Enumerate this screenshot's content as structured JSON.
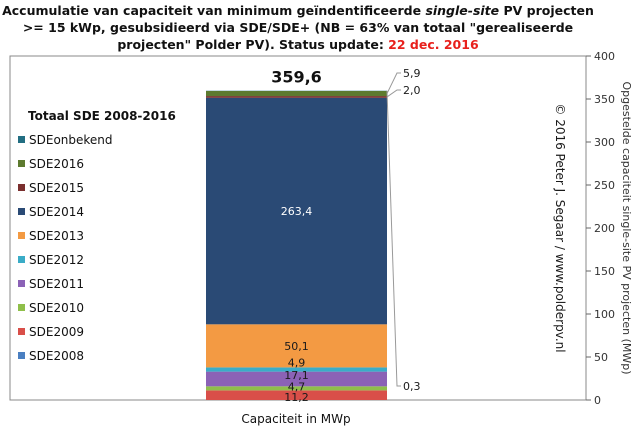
{
  "title": {
    "part1": "Accumulatie van capaciteit van minimum geïndentificeerde ",
    "italic": "single-site",
    "part2": " PV projecten >= 15 kWp, gesubsidieerd via SDE/SDE+ (NB = 63% van totaal \"gerealiseerde projecten\" Polder PV). Status update: ",
    "date": "22 dec. 2016"
  },
  "watermark": "© 2016 Peter J. Segaar / www.polderpv.nl",
  "colors": {
    "date_red": "#e8201c",
    "background": "#ffffff",
    "plot_border": "#888888"
  },
  "chart_data": {
    "type": "bar",
    "stacked": true,
    "categories": [
      ""
    ],
    "xlabel": "Capaciteit in MWp",
    "ylabel": "Opgestelde capaciteit single-site PV projecten (MWp)",
    "ylim": [
      0,
      400
    ],
    "yticks": [
      0,
      50,
      100,
      150,
      200,
      250,
      300,
      350,
      400
    ],
    "y_axis_side": "right",
    "grid": false,
    "legend_title": "Totaal SDE 2008-2016",
    "legend_position": "left",
    "total": 359.6,
    "total_label": "359,6",
    "series": [
      {
        "name": "SDE2008",
        "value": 0.0,
        "label": "",
        "color": "#4a7fc1"
      },
      {
        "name": "SDE2009",
        "value": 11.2,
        "label": "11,2",
        "color": "#d94f49"
      },
      {
        "name": "SDE2010",
        "value": 4.7,
        "label": "4,7",
        "color": "#8fbf4a"
      },
      {
        "name": "SDE2011",
        "value": 17.1,
        "label": "17,1",
        "color": "#8b62b6"
      },
      {
        "name": "SDE2012",
        "value": 4.9,
        "label": "4,9",
        "color": "#3aacc7"
      },
      {
        "name": "SDE2013",
        "value": 50.1,
        "label": "50,1",
        "color": "#f39a43"
      },
      {
        "name": "SDE2014",
        "value": 263.4,
        "label": "263,4",
        "color": "#2a4a75"
      },
      {
        "name": "SDE2015",
        "value": 2.0,
        "label": "2,0",
        "color": "#7a2f2e"
      },
      {
        "name": "SDE2016",
        "value": 5.9,
        "label": "5,9",
        "color": "#5d7a2f"
      },
      {
        "name": "SDEonbekend",
        "value": 0.3,
        "label": "0,3",
        "color": "#226e82"
      }
    ],
    "legend_order": [
      "SDEonbekend",
      "SDE2016",
      "SDE2015",
      "SDE2014",
      "SDE2013",
      "SDE2012",
      "SDE2011",
      "SDE2010",
      "SDE2009",
      "SDE2008"
    ]
  }
}
